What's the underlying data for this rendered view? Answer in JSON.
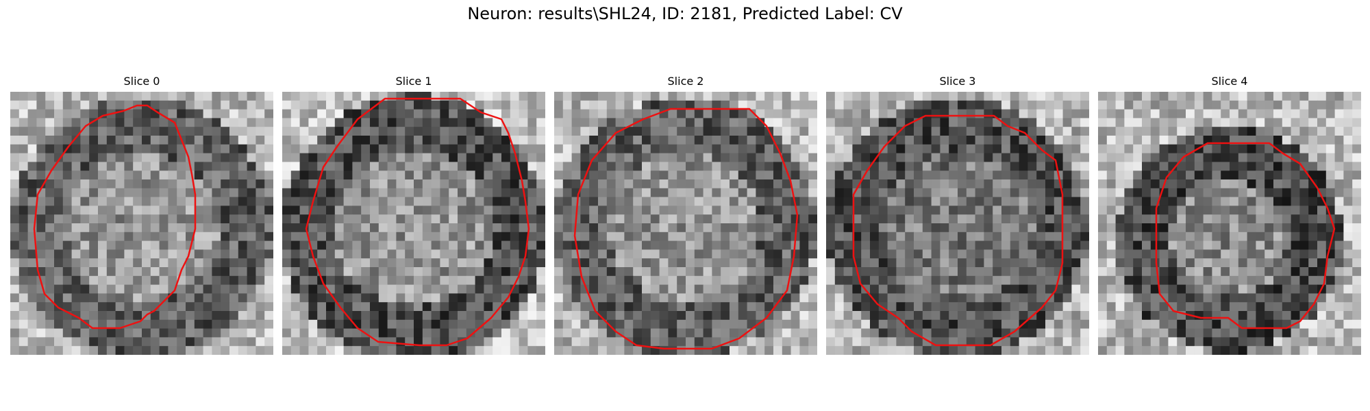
{
  "figure": {
    "title": "Neuron: results\\SHL24, ID: 2181, Predicted Label: CV"
  },
  "panels": [
    {
      "title": "Slice 0",
      "seed": 11,
      "blob": "ring",
      "contour_color": "#ee1111"
    },
    {
      "title": "Slice 1",
      "seed": 23,
      "blob": "ring-dark-sides",
      "contour_color": "#ee1111"
    },
    {
      "title": "Slice 2",
      "seed": 37,
      "blob": "ring",
      "contour_color": "#ee1111"
    },
    {
      "title": "Slice 3",
      "seed": 51,
      "blob": "ring-dark",
      "contour_color": "#ee1111"
    },
    {
      "title": "Slice 4",
      "seed": 67,
      "blob": "ring-small",
      "contour_color": "#ee1111"
    }
  ],
  "colors": {
    "colormap": "grayscale",
    "contour": "#ee1111",
    "background": "#ffffff"
  }
}
